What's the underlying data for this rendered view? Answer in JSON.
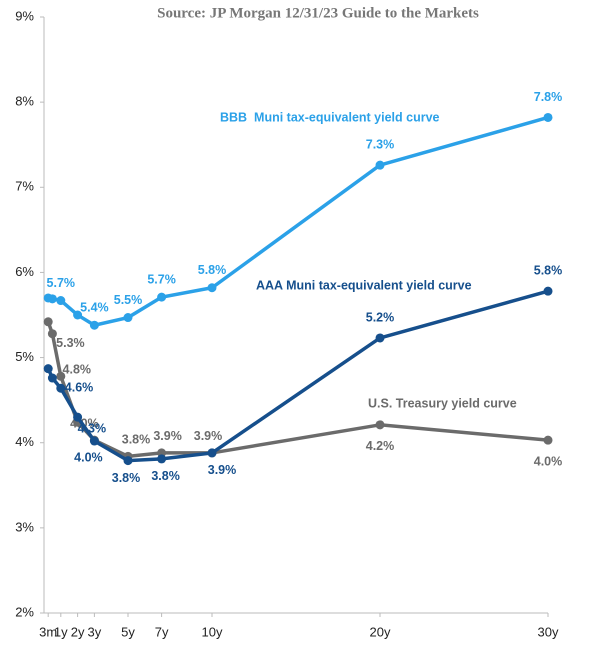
{
  "chart_data": {
    "type": "line",
    "title": "Source: JP Morgan 12/31/23 Guide to the Markets",
    "x": [
      0.25,
      0.5,
      1,
      2,
      3,
      5,
      7,
      10,
      20,
      30
    ],
    "xlim": [
      0,
      30
    ],
    "xticks": [
      {
        "value": 0.25,
        "label": "3m"
      },
      {
        "value": 1,
        "label": "1y"
      },
      {
        "value": 2,
        "label": "2y"
      },
      {
        "value": 3,
        "label": "3y"
      },
      {
        "value": 5,
        "label": "5y"
      },
      {
        "value": 7,
        "label": "7y"
      },
      {
        "value": 10,
        "label": "10y"
      },
      {
        "value": 20,
        "label": "20y"
      },
      {
        "value": 30,
        "label": "30y"
      }
    ],
    "ylim": [
      2,
      9
    ],
    "yticks": [
      {
        "value": 2,
        "label": "2%"
      },
      {
        "value": 3,
        "label": "3%"
      },
      {
        "value": 4,
        "label": "4%"
      },
      {
        "value": 5,
        "label": "5%"
      },
      {
        "value": 6,
        "label": "6%"
      },
      {
        "value": 7,
        "label": "7%"
      },
      {
        "value": 8,
        "label": "8%"
      },
      {
        "value": 9,
        "label": "9%"
      }
    ],
    "grid": false,
    "series": [
      {
        "name": "BBB  Muni tax-equivalent yield curve",
        "color": "#2ba1e8",
        "values": [
          5.7,
          5.69,
          5.67,
          5.5,
          5.38,
          5.47,
          5.71,
          5.82,
          7.26,
          7.82
        ],
        "value_labels": [
          null,
          null,
          "5.7%",
          null,
          "5.4%",
          "5.5%",
          "5.7%",
          "5.8%",
          "7.3%",
          "7.8%"
        ]
      },
      {
        "name": "AAA Muni tax-equivalent yield curve",
        "color": "#164f8c",
        "values": [
          4.87,
          4.76,
          4.64,
          4.3,
          4.02,
          3.79,
          3.81,
          3.88,
          5.23,
          5.78
        ],
        "value_labels": [
          null,
          null,
          "4.6%",
          "4.3%",
          "4.0%",
          "3.8%",
          "3.8%",
          "3.9%",
          "5.2%",
          "5.8%"
        ]
      },
      {
        "name": "U.S. Treasury yield curve",
        "color": "#6b6b6b",
        "values": [
          5.42,
          5.28,
          4.78,
          4.24,
          4.03,
          3.84,
          3.88,
          3.88,
          4.21,
          4.03
        ],
        "value_labels": [
          null,
          "5.3%",
          "4.8%",
          null,
          "4.0%",
          "3.8%",
          "3.9%",
          "3.9%",
          "4.2%",
          "4.0%"
        ]
      }
    ]
  }
}
